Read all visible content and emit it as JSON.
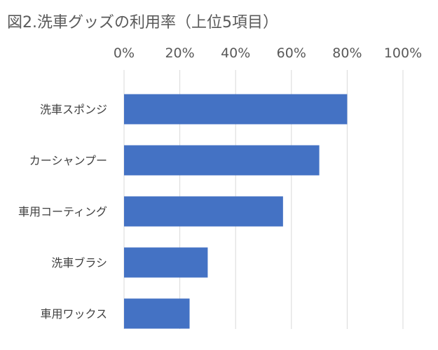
{
  "chart_data": {
    "type": "bar",
    "orientation": "horizontal",
    "title": "図2.洗車グッズの利用率（上位5項目）",
    "categories": [
      "洗車スポンジ",
      "カーシャンプー",
      "車用コーティング",
      "洗車ブラシ",
      "車用ワックス"
    ],
    "values": [
      0.8,
      0.7,
      0.57,
      0.3,
      0.235
    ],
    "xlim": [
      0,
      1
    ],
    "x_ticks": [
      0,
      0.2,
      0.4,
      0.6,
      0.8,
      1.0
    ],
    "x_tick_labels": [
      "0%",
      "20%",
      "40%",
      "60%",
      "80%",
      "100%"
    ],
    "x_axis_position": "top",
    "grid": true,
    "legend": "none",
    "bar_color": "#4472C4",
    "grid_color": "#D9D9D9"
  }
}
